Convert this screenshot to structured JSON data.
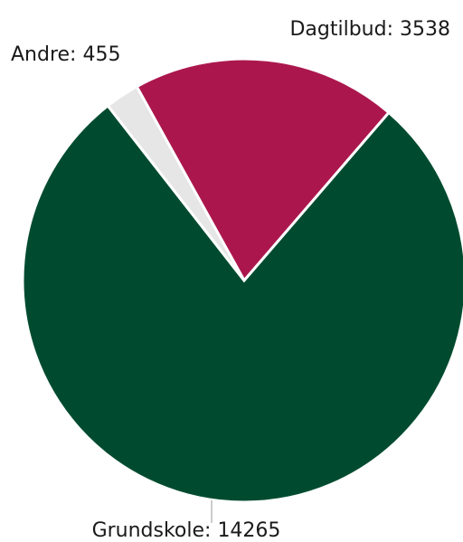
{
  "chart_data": {
    "type": "pie",
    "slices": [
      {
        "label": "Dagtilbud",
        "value": 3538,
        "color": "#ab174d",
        "text": "Dagtilbud: 3538"
      },
      {
        "label": "Grundskole",
        "value": 14265,
        "color": "#004b30",
        "text": "Grundskole: 14265"
      },
      {
        "label": "Andre",
        "value": 455,
        "color": "#e6e6e6",
        "text": "Andre: 455"
      }
    ]
  }
}
